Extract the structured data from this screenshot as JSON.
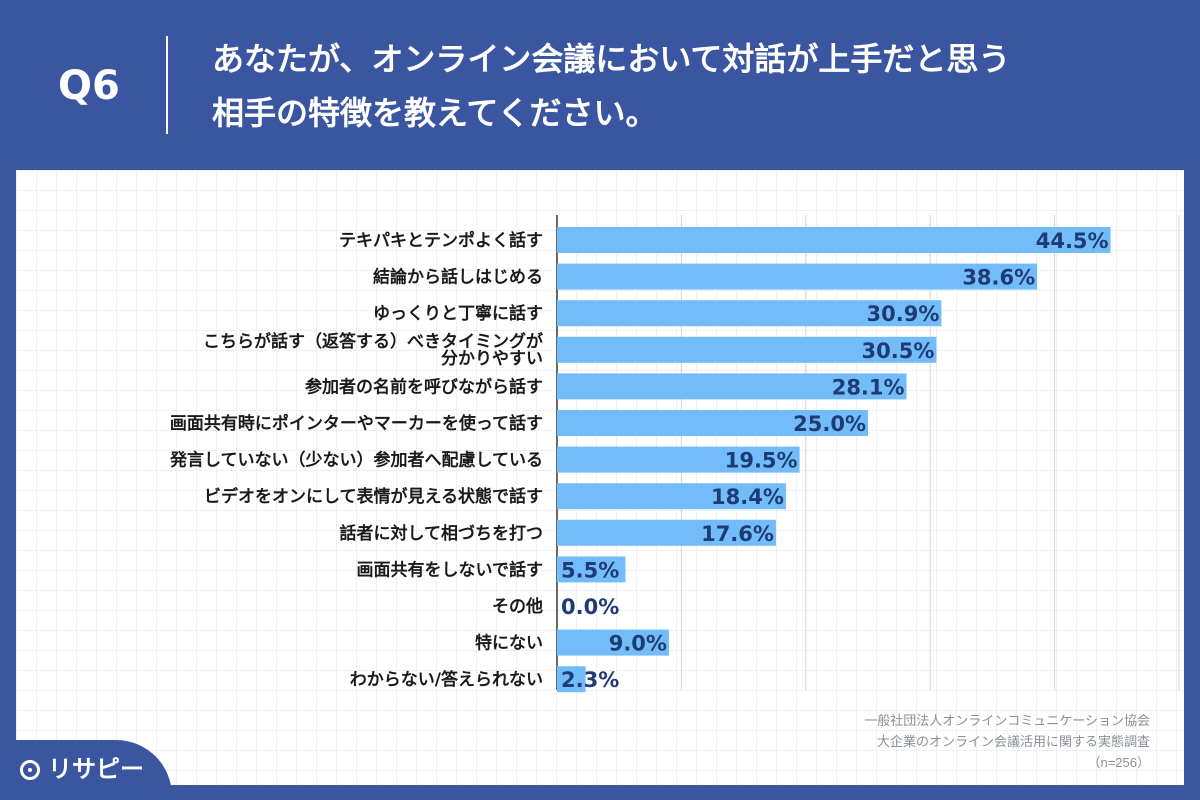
{
  "header": {
    "question_no": "Q6",
    "question_line1": "あなたが、オンライン会議において対話が上手だと思う",
    "question_line2": "相手の特徴を教えてください。"
  },
  "chart_data": {
    "type": "bar",
    "orientation": "horizontal",
    "title": "",
    "xlabel": "",
    "ylabel": "",
    "xlim": [
      0,
      50
    ],
    "grid": true,
    "categories": [
      [
        "テキパキとテンポよく話す"
      ],
      [
        "結論から話しはじめる"
      ],
      [
        "ゆっくりと丁寧に話す"
      ],
      [
        "こちらが話す（返答する）べきタイミングが",
        "分かりやすい"
      ],
      [
        "参加者の名前を呼びながら話す"
      ],
      [
        "画面共有時にポインターやマーカーを使って話す"
      ],
      [
        "発言していない（少ない）参加者へ配慮している"
      ],
      [
        "ビデオをオンにして表情が見える状態で話す"
      ],
      [
        "話者に対して相づちを打つ"
      ],
      [
        "画面共有をしないで話す"
      ],
      [
        "その他"
      ],
      [
        "特にない"
      ],
      [
        "わからない/答えられない"
      ]
    ],
    "values": [
      44.5,
      38.6,
      30.9,
      30.5,
      28.1,
      25.0,
      19.5,
      18.4,
      17.6,
      5.5,
      0.0,
      9.0,
      2.3
    ],
    "value_labels": [
      "44.5%",
      "38.6%",
      "30.9%",
      "30.5%",
      "28.1%",
      "25.0%",
      "19.5%",
      "18.4%",
      "17.6%",
      "5.5%",
      "0.0%",
      "9.0%",
      "2.3%"
    ],
    "bar_color": "#72bdf9"
  },
  "source": {
    "line1": "一般社団法人オンラインコミュニケーション協会",
    "line2": "大企業のオンライン会議活用に関する実態調査",
    "line3": "（n=256）"
  },
  "brand": {
    "name": "リサピー",
    "icon": "pin-icon"
  },
  "colors": {
    "background": "#3b56a0",
    "bar": "#72bdf9",
    "value_text": "#1f3b73"
  }
}
